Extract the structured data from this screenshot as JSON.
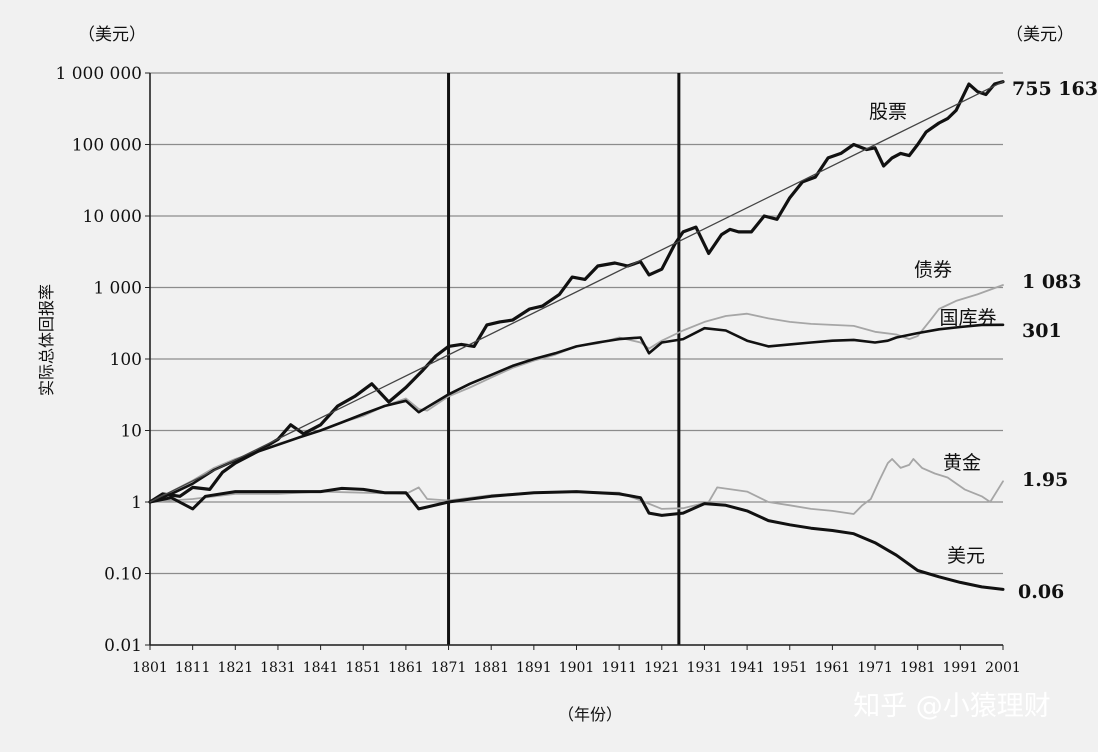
{
  "chart_data": {
    "type": "line",
    "yscale": "log",
    "ylabel": "实际总体回报率",
    "xlabel": "（年份）",
    "y_unit_left": "（美元）",
    "y_unit_right": "（美元）",
    "xlim": [
      1801,
      2001
    ],
    "ylim": [
      0.01,
      1000000
    ],
    "y_ticks": [
      {
        "value": 0.01,
        "label": "0.01"
      },
      {
        "value": 0.1,
        "label": "0.10"
      },
      {
        "value": 1,
        "label": "1"
      },
      {
        "value": 10,
        "label": "10"
      },
      {
        "value": 100,
        "label": "100"
      },
      {
        "value": 1000,
        "label": "1 000"
      },
      {
        "value": 10000,
        "label": "10 000"
      },
      {
        "value": 100000,
        "label": "100 000"
      },
      {
        "value": 1000000,
        "label": "1 000 000"
      }
    ],
    "x_ticks": [
      1801,
      1811,
      1821,
      1831,
      1841,
      1851,
      1861,
      1871,
      1881,
      1891,
      1901,
      1911,
      1921,
      1931,
      1941,
      1951,
      1961,
      1971,
      1981,
      1991,
      2001
    ],
    "vertical_markers": [
      1871,
      1925
    ],
    "series": [
      {
        "name": "股票",
        "end_label": "755 163",
        "color": "#111111",
        "width": 3.2,
        "points": [
          [
            1801,
            1
          ],
          [
            1804,
            1.3
          ],
          [
            1808,
            1.2
          ],
          [
            1811,
            1.6
          ],
          [
            1815,
            1.5
          ],
          [
            1818,
            2.6
          ],
          [
            1821,
            3.5
          ],
          [
            1826,
            5
          ],
          [
            1831,
            7.5
          ],
          [
            1834,
            12
          ],
          [
            1837,
            9
          ],
          [
            1841,
            12
          ],
          [
            1845,
            22
          ],
          [
            1849,
            30
          ],
          [
            1853,
            45
          ],
          [
            1857,
            25
          ],
          [
            1861,
            40
          ],
          [
            1865,
            70
          ],
          [
            1868,
            110
          ],
          [
            1871,
            150
          ],
          [
            1874,
            160
          ],
          [
            1877,
            150
          ],
          [
            1880,
            300
          ],
          [
            1883,
            330
          ],
          [
            1886,
            350
          ],
          [
            1890,
            500
          ],
          [
            1893,
            550
          ],
          [
            1897,
            800
          ],
          [
            1900,
            1400
          ],
          [
            1903,
            1300
          ],
          [
            1906,
            2000
          ],
          [
            1910,
            2200
          ],
          [
            1913,
            2000
          ],
          [
            1916,
            2300
          ],
          [
            1918,
            1500
          ],
          [
            1921,
            1800
          ],
          [
            1924,
            4000
          ],
          [
            1926,
            6000
          ],
          [
            1929,
            7000
          ],
          [
            1932,
            3000
          ],
          [
            1935,
            5500
          ],
          [
            1937,
            6500
          ],
          [
            1939,
            6000
          ],
          [
            1942,
            6000
          ],
          [
            1945,
            10000
          ],
          [
            1948,
            9000
          ],
          [
            1951,
            18000
          ],
          [
            1954,
            30000
          ],
          [
            1957,
            35000
          ],
          [
            1960,
            65000
          ],
          [
            1963,
            75000
          ],
          [
            1966,
            100000
          ],
          [
            1969,
            85000
          ],
          [
            1971,
            90000
          ],
          [
            1973,
            50000
          ],
          [
            1975,
            65000
          ],
          [
            1977,
            75000
          ],
          [
            1979,
            70000
          ],
          [
            1981,
            100000
          ],
          [
            1983,
            150000
          ],
          [
            1986,
            200000
          ],
          [
            1988,
            230000
          ],
          [
            1990,
            300000
          ],
          [
            1993,
            700000
          ],
          [
            1995,
            550000
          ],
          [
            1997,
            500000
          ],
          [
            1999,
            700000
          ],
          [
            2001,
            755163
          ]
        ]
      },
      {
        "name": "债券",
        "end_label": "1 083",
        "color": "#a6a6a6",
        "width": 1.8,
        "points": [
          [
            1801,
            1
          ],
          [
            1806,
            1.4
          ],
          [
            1811,
            2
          ],
          [
            1816,
            3
          ],
          [
            1821,
            4
          ],
          [
            1826,
            5
          ],
          [
            1831,
            6.5
          ],
          [
            1836,
            8
          ],
          [
            1841,
            10
          ],
          [
            1846,
            13
          ],
          [
            1851,
            16
          ],
          [
            1856,
            22
          ],
          [
            1861,
            28
          ],
          [
            1864,
            20
          ],
          [
            1866,
            19
          ],
          [
            1871,
            30
          ],
          [
            1876,
            40
          ],
          [
            1881,
            55
          ],
          [
            1886,
            75
          ],
          [
            1891,
            95
          ],
          [
            1896,
            115
          ],
          [
            1901,
            150
          ],
          [
            1906,
            165
          ],
          [
            1911,
            200
          ],
          [
            1916,
            170
          ],
          [
            1918,
            140
          ],
          [
            1921,
            180
          ],
          [
            1926,
            250
          ],
          [
            1931,
            330
          ],
          [
            1936,
            400
          ],
          [
            1941,
            430
          ],
          [
            1946,
            370
          ],
          [
            1951,
            330
          ],
          [
            1956,
            310
          ],
          [
            1961,
            300
          ],
          [
            1966,
            290
          ],
          [
            1971,
            240
          ],
          [
            1976,
            220
          ],
          [
            1979,
            190
          ],
          [
            1981,
            210
          ],
          [
            1984,
            350
          ],
          [
            1986,
            500
          ],
          [
            1990,
            650
          ],
          [
            1995,
            800
          ],
          [
            2001,
            1083
          ]
        ]
      },
      {
        "name": "国库券",
        "end_label": "301",
        "color": "#111111",
        "width": 2.6,
        "points": [
          [
            1801,
            1
          ],
          [
            1806,
            1.3
          ],
          [
            1811,
            1.8
          ],
          [
            1816,
            2.8
          ],
          [
            1821,
            3.8
          ],
          [
            1826,
            5
          ],
          [
            1831,
            6.3
          ],
          [
            1836,
            8
          ],
          [
            1841,
            10
          ],
          [
            1846,
            13
          ],
          [
            1851,
            17
          ],
          [
            1856,
            22
          ],
          [
            1861,
            26
          ],
          [
            1864,
            18
          ],
          [
            1867,
            23
          ],
          [
            1871,
            32
          ],
          [
            1876,
            45
          ],
          [
            1881,
            60
          ],
          [
            1886,
            80
          ],
          [
            1891,
            100
          ],
          [
            1896,
            120
          ],
          [
            1901,
            150
          ],
          [
            1906,
            170
          ],
          [
            1911,
            190
          ],
          [
            1916,
            200
          ],
          [
            1918,
            120
          ],
          [
            1921,
            170
          ],
          [
            1926,
            190
          ],
          [
            1931,
            270
          ],
          [
            1936,
            250
          ],
          [
            1941,
            180
          ],
          [
            1946,
            150
          ],
          [
            1951,
            160
          ],
          [
            1956,
            170
          ],
          [
            1961,
            180
          ],
          [
            1966,
            185
          ],
          [
            1971,
            170
          ],
          [
            1974,
            180
          ],
          [
            1976,
            200
          ],
          [
            1981,
            230
          ],
          [
            1986,
            260
          ],
          [
            1991,
            280
          ],
          [
            1996,
            300
          ],
          [
            2001,
            301
          ]
        ]
      },
      {
        "name": "黄金",
        "end_label": "1.95",
        "color": "#a6a6a6",
        "width": 1.8,
        "points": [
          [
            1801,
            1
          ],
          [
            1811,
            1.1
          ],
          [
            1821,
            1.3
          ],
          [
            1831,
            1.3
          ],
          [
            1841,
            1.4
          ],
          [
            1851,
            1.35
          ],
          [
            1861,
            1.3
          ],
          [
            1864,
            1.6
          ],
          [
            1866,
            1.1
          ],
          [
            1871,
            1.05
          ],
          [
            1881,
            1.25
          ],
          [
            1891,
            1.35
          ],
          [
            1901,
            1.4
          ],
          [
            1911,
            1.35
          ],
          [
            1917,
            1.0
          ],
          [
            1921,
            0.8
          ],
          [
            1926,
            0.82
          ],
          [
            1932,
            1.0
          ],
          [
            1934,
            1.6
          ],
          [
            1941,
            1.4
          ],
          [
            1946,
            1.0
          ],
          [
            1951,
            0.9
          ],
          [
            1956,
            0.8
          ],
          [
            1961,
            0.75
          ],
          [
            1966,
            0.68
          ],
          [
            1968,
            0.9
          ],
          [
            1970,
            1.1
          ],
          [
            1972,
            2.0
          ],
          [
            1974,
            3.5
          ],
          [
            1975,
            4.0
          ],
          [
            1977,
            3.0
          ],
          [
            1979,
            3.3
          ],
          [
            1980,
            4.0
          ],
          [
            1982,
            3.0
          ],
          [
            1985,
            2.5
          ],
          [
            1988,
            2.2
          ],
          [
            1992,
            1.5
          ],
          [
            1996,
            1.2
          ],
          [
            1998,
            1.0
          ],
          [
            2001,
            1.95
          ]
        ]
      },
      {
        "name": "美元",
        "end_label": "0.06",
        "color": "#111111",
        "width": 3.0,
        "points": [
          [
            1801,
            1
          ],
          [
            1806,
            1.15
          ],
          [
            1811,
            0.8
          ],
          [
            1814,
            1.2
          ],
          [
            1821,
            1.4
          ],
          [
            1831,
            1.4
          ],
          [
            1841,
            1.4
          ],
          [
            1846,
            1.55
          ],
          [
            1851,
            1.5
          ],
          [
            1856,
            1.35
          ],
          [
            1861,
            1.35
          ],
          [
            1864,
            0.8
          ],
          [
            1866,
            0.85
          ],
          [
            1871,
            1.0
          ],
          [
            1881,
            1.2
          ],
          [
            1891,
            1.35
          ],
          [
            1901,
            1.4
          ],
          [
            1911,
            1.3
          ],
          [
            1916,
            1.15
          ],
          [
            1918,
            0.7
          ],
          [
            1921,
            0.65
          ],
          [
            1926,
            0.7
          ],
          [
            1931,
            0.95
          ],
          [
            1936,
            0.9
          ],
          [
            1941,
            0.75
          ],
          [
            1946,
            0.55
          ],
          [
            1951,
            0.48
          ],
          [
            1956,
            0.43
          ],
          [
            1961,
            0.4
          ],
          [
            1966,
            0.36
          ],
          [
            1971,
            0.27
          ],
          [
            1976,
            0.18
          ],
          [
            1981,
            0.11
          ],
          [
            1986,
            0.09
          ],
          [
            1991,
            0.075
          ],
          [
            1996,
            0.065
          ],
          [
            2001,
            0.06
          ]
        ]
      },
      {
        "name": "trend",
        "color": "#444444",
        "width": 1.3,
        "points": [
          [
            1801,
            1
          ],
          [
            2001,
            755163
          ]
        ]
      }
    ],
    "series_labels": [
      {
        "series": "股票",
        "text": "股票"
      },
      {
        "series": "债券",
        "text": "债券"
      },
      {
        "series": "国库券",
        "text": "国库券"
      },
      {
        "series": "黄金",
        "text": "黄金"
      },
      {
        "series": "美元",
        "text": "美元"
      }
    ]
  },
  "watermark": "知乎 @小猿理财"
}
